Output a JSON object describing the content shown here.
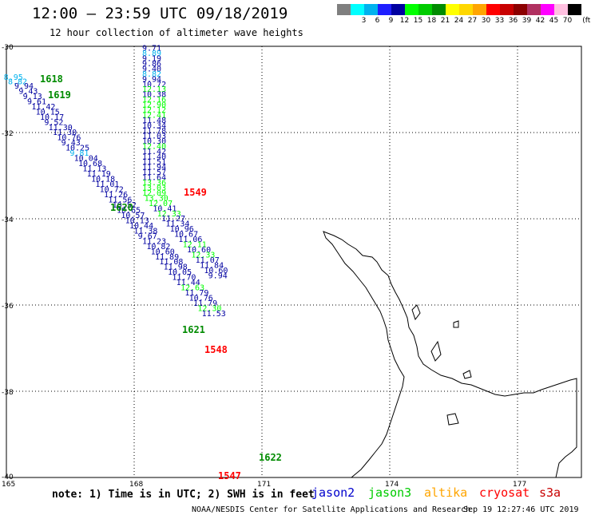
{
  "header": {
    "title": "12:00 – 23:59 UTC 09/18/2019",
    "subtitle": "12 hour collection of altimeter wave heights"
  },
  "colorbar": {
    "unit": "(ft)",
    "bins": [
      {
        "label": "",
        "color": "#7f7f7f"
      },
      {
        "label": "3",
        "color": "#00ffff"
      },
      {
        "label": "6",
        "color": "#00b2ee"
      },
      {
        "label": "9",
        "color": "#1e1eff"
      },
      {
        "label": "12",
        "color": "#0000a0"
      },
      {
        "label": "15",
        "color": "#00ff00"
      },
      {
        "label": "18",
        "color": "#00cc00"
      },
      {
        "label": "21",
        "color": "#008b00"
      },
      {
        "label": "24",
        "color": "#ffff00"
      },
      {
        "label": "27",
        "color": "#ffd700"
      },
      {
        "label": "30",
        "color": "#ffa500"
      },
      {
        "label": "33",
        "color": "#ff0000"
      },
      {
        "label": "36",
        "color": "#c80000"
      },
      {
        "label": "39",
        "color": "#8b0000"
      },
      {
        "label": "42",
        "color": "#b03060"
      },
      {
        "label": "45",
        "color": "#ff00ff"
      },
      {
        "label": "70",
        "color": "#ffc0e0"
      },
      {
        "label": "",
        "color": "#000000"
      }
    ]
  },
  "map": {
    "lon_range": [
      165,
      178.5
    ],
    "lat_range": [
      -40,
      -30
    ],
    "lat_ticks": [
      {
        "v": -30,
        "label": "-30"
      },
      {
        "v": -32,
        "label": "-32"
      },
      {
        "v": -34,
        "label": "-34"
      },
      {
        "v": -36,
        "label": "-36"
      },
      {
        "v": -38,
        "label": "-38"
      },
      {
        "v": -40,
        "label": "-40"
      }
    ],
    "lon_ticks": [
      {
        "v": 165,
        "label": "165"
      },
      {
        "v": 168,
        "label": "168"
      },
      {
        "v": 171,
        "label": "171"
      },
      {
        "v": 174,
        "label": "174"
      },
      {
        "v": 177,
        "label": "177"
      }
    ]
  },
  "tracks": [
    {
      "satellite": "jason3",
      "points": [
        {
          "lon": 165.2,
          "lat": -30.78,
          "v": "8.95",
          "c": "#00b2ee"
        },
        {
          "lon": 165.3,
          "lat": -30.88,
          "v": "8.82",
          "c": "#00b2ee"
        },
        {
          "lon": 165.45,
          "lat": -30.98,
          "v": "9.94",
          "c": "#0000a0"
        },
        {
          "lon": 165.55,
          "lat": -31.1,
          "v": "9.43",
          "c": "#0000a0"
        },
        {
          "lon": 165.65,
          "lat": -31.22,
          "v": "9.13",
          "c": "#0000a0"
        },
        {
          "lon": 165.75,
          "lat": -31.34,
          "v": "9.61",
          "c": "#0000a0"
        },
        {
          "lon": 165.85,
          "lat": -31.46,
          "v": "11.42",
          "c": "#0000a0"
        },
        {
          "lon": 165.95,
          "lat": -31.58,
          "v": "10.15",
          "c": "#0000a0"
        },
        {
          "lon": 166.05,
          "lat": -31.7,
          "v": "10.17",
          "c": "#0000a0"
        },
        {
          "lon": 166.15,
          "lat": -31.82,
          "v": "9.52",
          "c": "#0000a0"
        },
        {
          "lon": 166.25,
          "lat": -31.94,
          "v": "11.30",
          "c": "#0000a0"
        },
        {
          "lon": 166.35,
          "lat": -32.06,
          "v": "11.30",
          "c": "#0000a0"
        },
        {
          "lon": 166.45,
          "lat": -32.18,
          "v": "10.76",
          "c": "#0000a0"
        },
        {
          "lon": 166.55,
          "lat": -32.3,
          "v": "9.43",
          "c": "#0000a0"
        },
        {
          "lon": 166.65,
          "lat": -32.42,
          "v": "10.25",
          "c": "#0000a0"
        },
        {
          "lon": 166.75,
          "lat": -32.54,
          "v": "9.81",
          "c": "#00b2ee"
        },
        {
          "lon": 166.85,
          "lat": -32.66,
          "v": "10.04",
          "c": "#0000a0"
        },
        {
          "lon": 166.95,
          "lat": -32.78,
          "v": "10.68",
          "c": "#0000a0"
        },
        {
          "lon": 167.05,
          "lat": -32.9,
          "v": "11.13",
          "c": "#0000a0"
        },
        {
          "lon": 167.15,
          "lat": -33.02,
          "v": "11.19",
          "c": "#0000a0"
        },
        {
          "lon": 167.25,
          "lat": -33.14,
          "v": "10.18",
          "c": "#0000a0"
        },
        {
          "lon": 167.35,
          "lat": -33.26,
          "v": "11.01",
          "c": "#0000a0"
        },
        {
          "lon": 167.45,
          "lat": -33.38,
          "v": "10.72",
          "c": "#0000a0"
        },
        {
          "lon": 167.55,
          "lat": -33.5,
          "v": "11.26",
          "c": "#0000a0"
        },
        {
          "lon": 167.65,
          "lat": -33.62,
          "v": "11.56",
          "c": "#0000a0"
        },
        {
          "lon": 167.75,
          "lat": -33.74,
          "v": "10.52",
          "c": "#0000a0"
        },
        {
          "lon": 167.85,
          "lat": -33.86,
          "v": "10.65",
          "c": "#0000a0"
        },
        {
          "lon": 167.95,
          "lat": -33.98,
          "v": "10.57",
          "c": "#0000a0"
        },
        {
          "lon": 168.05,
          "lat": -34.1,
          "v": "10.13",
          "c": "#0000a0"
        },
        {
          "lon": 168.15,
          "lat": -34.22,
          "v": "10.44",
          "c": "#0000a0"
        },
        {
          "lon": 168.25,
          "lat": -34.34,
          "v": "11.38",
          "c": "#0000a0"
        },
        {
          "lon": 168.35,
          "lat": -34.46,
          "v": "9.67",
          "c": "#0000a0"
        },
        {
          "lon": 168.45,
          "lat": -34.58,
          "v": "11.23",
          "c": "#0000a0"
        },
        {
          "lon": 168.55,
          "lat": -34.7,
          "v": "10.82",
          "c": "#0000a0"
        },
        {
          "lon": 168.65,
          "lat": -34.82,
          "v": "10.60",
          "c": "#0000a0"
        },
        {
          "lon": 168.75,
          "lat": -34.94,
          "v": "11.89",
          "c": "#0000a0"
        },
        {
          "lon": 168.85,
          "lat": -35.06,
          "v": "11.08",
          "c": "#0000a0"
        },
        {
          "lon": 168.95,
          "lat": -35.18,
          "v": "11.98",
          "c": "#0000a0"
        },
        {
          "lon": 169.05,
          "lat": -35.3,
          "v": "10.05",
          "c": "#0000a0"
        },
        {
          "lon": 169.15,
          "lat": -35.42,
          "v": "11.70",
          "c": "#0000a0"
        },
        {
          "lon": 169.25,
          "lat": -35.54,
          "v": "11.44",
          "c": "#0000a0"
        },
        {
          "lon": 169.35,
          "lat": -35.66,
          "v": "12.63",
          "c": "#00ff00"
        },
        {
          "lon": 169.45,
          "lat": -35.78,
          "v": "11.79",
          "c": "#0000a0"
        },
        {
          "lon": 169.55,
          "lat": -35.9,
          "v": "10.76",
          "c": "#0000a0"
        },
        {
          "lon": 169.65,
          "lat": -36.02,
          "v": "11.79",
          "c": "#0000a0"
        },
        {
          "lon": 169.75,
          "lat": -36.14,
          "v": "12.30",
          "c": "#00ff00"
        },
        {
          "lon": 169.85,
          "lat": -36.26,
          "v": "11.53",
          "c": "#0000a0"
        }
      ]
    },
    {
      "satellite": "jason2",
      "points": [
        {
          "lon": 168.45,
          "lat": -30.1,
          "v": "9.71",
          "c": "#0000a0"
        },
        {
          "lon": 168.45,
          "lat": -30.22,
          "v": "8.89",
          "c": "#00b2ee"
        },
        {
          "lon": 168.45,
          "lat": -30.34,
          "v": "9.19",
          "c": "#0000a0"
        },
        {
          "lon": 168.45,
          "lat": -30.46,
          "v": "9.86",
          "c": "#0000a0"
        },
        {
          "lon": 168.45,
          "lat": -30.58,
          "v": "9.40",
          "c": "#0000a0"
        },
        {
          "lon": 168.45,
          "lat": -30.7,
          "v": "8.82",
          "c": "#00b2ee"
        },
        {
          "lon": 168.45,
          "lat": -30.82,
          "v": "9.94",
          "c": "#0000a0"
        },
        {
          "lon": 168.45,
          "lat": -30.94,
          "v": "10.72",
          "c": "#0000a0"
        },
        {
          "lon": 168.45,
          "lat": -31.06,
          "v": "12.13",
          "c": "#00ff00"
        },
        {
          "lon": 168.45,
          "lat": -31.18,
          "v": "10.38",
          "c": "#0000a0"
        },
        {
          "lon": 168.45,
          "lat": -31.3,
          "v": "12.16",
          "c": "#00ff00"
        },
        {
          "lon": 168.45,
          "lat": -31.42,
          "v": "12.90",
          "c": "#00ff00"
        },
        {
          "lon": 168.45,
          "lat": -31.54,
          "v": "12.12",
          "c": "#00ff00"
        },
        {
          "lon": 168.45,
          "lat": -31.66,
          "v": "12.41",
          "c": "#00ff00"
        },
        {
          "lon": 168.45,
          "lat": -31.78,
          "v": "11.48",
          "c": "#0000a0"
        },
        {
          "lon": 168.45,
          "lat": -31.9,
          "v": "10.34",
          "c": "#0000a0"
        },
        {
          "lon": 168.45,
          "lat": -32.02,
          "v": "11.78",
          "c": "#0000a0"
        },
        {
          "lon": 168.45,
          "lat": -32.14,
          "v": "11.03",
          "c": "#0000a0"
        },
        {
          "lon": 168.45,
          "lat": -32.26,
          "v": "10.30",
          "c": "#0000a0"
        },
        {
          "lon": 168.45,
          "lat": -32.38,
          "v": "12.40",
          "c": "#00ff00"
        },
        {
          "lon": 168.45,
          "lat": -32.5,
          "v": "11.42",
          "c": "#0000a0"
        },
        {
          "lon": 168.45,
          "lat": -32.62,
          "v": "11.40",
          "c": "#0000a0"
        },
        {
          "lon": 168.45,
          "lat": -32.74,
          "v": "11.51",
          "c": "#0000a0"
        },
        {
          "lon": 168.45,
          "lat": -32.86,
          "v": "11.94",
          "c": "#0000a0"
        },
        {
          "lon": 168.45,
          "lat": -32.98,
          "v": "11.57",
          "c": "#0000a0"
        },
        {
          "lon": 168.45,
          "lat": -33.1,
          "v": "11.64",
          "c": "#0000a0"
        },
        {
          "lon": 168.45,
          "lat": -33.22,
          "v": "13.36",
          "c": "#00ff00"
        },
        {
          "lon": 168.45,
          "lat": -33.34,
          "v": "13.03",
          "c": "#00ff00"
        },
        {
          "lon": 168.45,
          "lat": -33.46,
          "v": "12.09",
          "c": "#00ff00"
        },
        {
          "lon": 168.5,
          "lat": -33.58,
          "v": "13.30",
          "c": "#00ff00"
        },
        {
          "lon": 168.6,
          "lat": -33.7,
          "v": "12.07",
          "c": "#00ff00"
        },
        {
          "lon": 168.7,
          "lat": -33.82,
          "v": "10.41",
          "c": "#0000a0"
        },
        {
          "lon": 168.8,
          "lat": -33.94,
          "v": "12.33",
          "c": "#00ff00"
        },
        {
          "lon": 168.9,
          "lat": -34.06,
          "v": "11.27",
          "c": "#0000a0"
        },
        {
          "lon": 169.0,
          "lat": -34.18,
          "v": "11.34",
          "c": "#0000a0"
        },
        {
          "lon": 169.1,
          "lat": -34.3,
          "v": "10.96",
          "c": "#0000a0"
        },
        {
          "lon": 169.2,
          "lat": -34.42,
          "v": "10.67",
          "c": "#0000a0"
        },
        {
          "lon": 169.3,
          "lat": -34.54,
          "v": "11.06",
          "c": "#0000a0"
        },
        {
          "lon": 169.4,
          "lat": -34.66,
          "v": "12.11",
          "c": "#00ff00"
        },
        {
          "lon": 169.5,
          "lat": -34.78,
          "v": "10.60",
          "c": "#0000a0"
        },
        {
          "lon": 169.6,
          "lat": -34.9,
          "v": "12.33",
          "c": "#00ff00"
        },
        {
          "lon": 169.7,
          "lat": -35.02,
          "v": "11.07",
          "c": "#0000a0"
        },
        {
          "lon": 169.8,
          "lat": -35.14,
          "v": "11.84",
          "c": "#0000a0"
        },
        {
          "lon": 169.9,
          "lat": -35.26,
          "v": "10.60",
          "c": "#0000a0"
        },
        {
          "lon": 170.0,
          "lat": -35.38,
          "v": "9.94",
          "c": "#0000a0"
        }
      ]
    }
  ],
  "pass_labels": [
    {
      "text": "1618",
      "color": "#008b00"
    },
    {
      "text": "1619",
      "color": "#008b00"
    },
    {
      "text": "1620",
      "color": "#008b00"
    },
    {
      "text": "1549",
      "color": "#ff0000"
    },
    {
      "text": "1621",
      "color": "#008b00"
    },
    {
      "text": "1548",
      "color": "#ff0000"
    },
    {
      "text": "1622",
      "color": "#008b00"
    },
    {
      "text": "1547",
      "color": "#ff0000"
    }
  ],
  "footer": {
    "note": "note: 1) Time is in UTC; 2) SWH is in feet",
    "satellites": [
      {
        "name": "jason2",
        "color": "#0000cd"
      },
      {
        "name": "jason3",
        "color": "#00cc00"
      },
      {
        "name": "altika",
        "color": "#ffa500"
      },
      {
        "name": "cryosat",
        "color": "#ff0000"
      },
      {
        "name": "s3a",
        "color": "#c80000"
      }
    ],
    "credit": "NOAA/NESDIS Center for Satellite Applications and Research",
    "timestamp": "Sep 19 12:27:46 UTC 2019"
  }
}
